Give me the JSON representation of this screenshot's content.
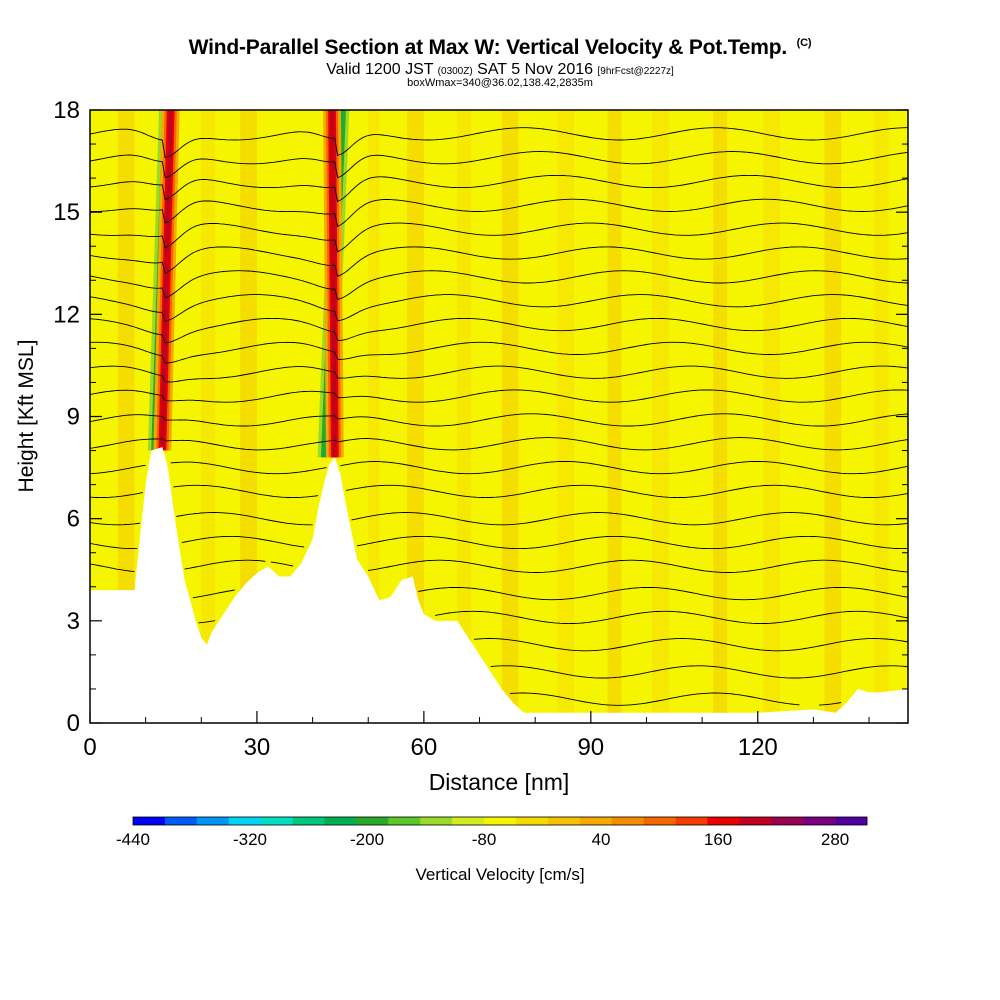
{
  "header": {
    "title": "Wind-Parallel Section at Max W: Vertical Velocity & Pot.Temp.",
    "copyright": "(C)",
    "valid_prefix": "Valid 1200 JST",
    "valid_utc": "(0300Z)",
    "valid_date": "SAT 5 Nov 2016",
    "forecast": "[9hrFcst@2227z]",
    "box_info": "boxWmax=340@36.02,138.42,2835m"
  },
  "chart_data": {
    "type": "heatmap",
    "xlabel": "Distance [nm]",
    "ylabel": "Height [Kft MSL]",
    "xlim": [
      0,
      147
    ],
    "ylim": [
      0,
      18
    ],
    "x_ticks": [
      0,
      30,
      60,
      90,
      120
    ],
    "y_ticks": [
      0,
      3,
      6,
      9,
      12,
      15,
      18
    ],
    "colorbar": {
      "label": "Vertical Velocity [cm/s]",
      "tick_labels": [
        "-440",
        "-320",
        "-200",
        "-80",
        "40",
        "160",
        "280"
      ],
      "colors": [
        "#0000f5",
        "#005af5",
        "#0096f5",
        "#00d4f5",
        "#00e0c0",
        "#00c87a",
        "#00b050",
        "#2aa82a",
        "#5ac828",
        "#9ada28",
        "#d2ec20",
        "#f5f500",
        "#f5dc00",
        "#f5c200",
        "#f5a800",
        "#f58c00",
        "#f56800",
        "#f53c00",
        "#e80000",
        "#c00020",
        "#980050",
        "#780080",
        "#5000a0"
      ]
    },
    "terrain_kft": [
      [
        0,
        3.9
      ],
      [
        4,
        3.9
      ],
      [
        8,
        3.9
      ],
      [
        9,
        5.5
      ],
      [
        10,
        7.0
      ],
      [
        11,
        8.0
      ],
      [
        13,
        8.1
      ],
      [
        14,
        7.5
      ],
      [
        15,
        6.3
      ],
      [
        16,
        5.2
      ],
      [
        17,
        4.2
      ],
      [
        18,
        3.6
      ],
      [
        19,
        3.0
      ],
      [
        20,
        2.5
      ],
      [
        21,
        2.3
      ],
      [
        22,
        2.7
      ],
      [
        24,
        3.2
      ],
      [
        26,
        3.7
      ],
      [
        28,
        4.1
      ],
      [
        30,
        4.4
      ],
      [
        32,
        4.6
      ],
      [
        34,
        4.3
      ],
      [
        36,
        4.3
      ],
      [
        38,
        4.7
      ],
      [
        40,
        5.4
      ],
      [
        41,
        6.3
      ],
      [
        42,
        7.0
      ],
      [
        43,
        7.6
      ],
      [
        44,
        7.8
      ],
      [
        45,
        7.3
      ],
      [
        46,
        6.4
      ],
      [
        47,
        5.6
      ],
      [
        48,
        4.8
      ],
      [
        50,
        4.3
      ],
      [
        52,
        3.6
      ],
      [
        54,
        3.7
      ],
      [
        56,
        4.2
      ],
      [
        58,
        4.3
      ],
      [
        59,
        3.6
      ],
      [
        60,
        3.2
      ],
      [
        62,
        3.0
      ],
      [
        64,
        3.0
      ],
      [
        66,
        3.0
      ],
      [
        68,
        2.5
      ],
      [
        70,
        2.0
      ],
      [
        72,
        1.5
      ],
      [
        74,
        1.0
      ],
      [
        76,
        0.6
      ],
      [
        78,
        0.3
      ],
      [
        90,
        0.3
      ],
      [
        96,
        0.3
      ],
      [
        100,
        0.3
      ],
      [
        110,
        0.3
      ],
      [
        120,
        0.3
      ],
      [
        130,
        0.4
      ],
      [
        134,
        0.3
      ],
      [
        136,
        0.6
      ],
      [
        138,
        1.0
      ],
      [
        140,
        0.9
      ],
      [
        142,
        0.9
      ],
      [
        147,
        1.0
      ]
    ],
    "updraft_bands": [
      {
        "base": [
          13,
          8.0
        ],
        "top": [
          14.5,
          18
        ],
        "peak_cm_s": 280
      },
      {
        "base": [
          44,
          7.8
        ],
        "top": [
          43.5,
          18
        ],
        "peak_cm_s": 340
      }
    ],
    "downdraft_bands": [
      {
        "base": [
          12,
          8.0
        ],
        "top": [
          14,
          18
        ],
        "min_cm_s": -200
      },
      {
        "base": [
          42.5,
          7.8
        ],
        "top": [
          45,
          18
        ],
        "min_cm_s": -200
      }
    ],
    "isentropes_kft_far_field": [
      0.7,
      1.5,
      2.3,
      3.1,
      3.8,
      4.6,
      5.3,
      6.0,
      6.8,
      7.5,
      8.2,
      8.9,
      9.6,
      10.3,
      11.0,
      11.7,
      12.4,
      13.1,
      13.8,
      14.5,
      15.2,
      15.9,
      16.6,
      17.3
    ]
  }
}
